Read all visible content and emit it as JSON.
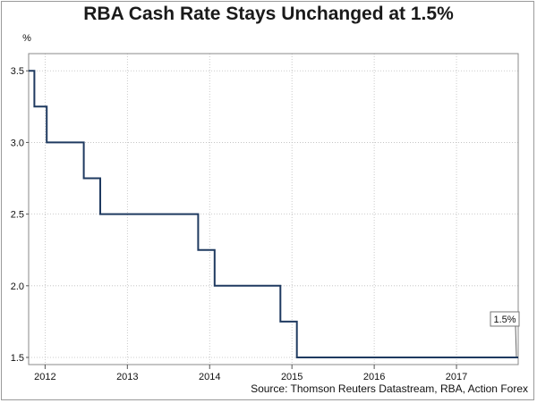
{
  "chart_data": {
    "type": "line",
    "step": true,
    "title": "RBA Cash Rate Stays Unchanged at 1.5%",
    "ylabel": "%",
    "xlabel": "",
    "source": "Source: Thomson Reuters Datastream, RBA, Action Forex",
    "ylim": [
      1.45,
      3.62
    ],
    "xlim": [
      2011.8,
      2017.75
    ],
    "yticks": [
      1.5,
      2.0,
      2.5,
      3.0,
      3.5
    ],
    "ytick_labels": [
      "1.5",
      "2.0",
      "2.5",
      "3.0",
      "3.5"
    ],
    "xtick_labels": [
      {
        "label": "2012",
        "x": 2012.0
      },
      {
        "label": "2013",
        "x": 2013.0
      },
      {
        "label": "2014",
        "x": 2014.0
      },
      {
        "label": "2015",
        "x": 2015.0
      },
      {
        "label": "2016",
        "x": 2016.0
      },
      {
        "label": "2017",
        "x": 2017.0
      }
    ],
    "grid": true,
    "series": [
      {
        "name": "RBA Cash Rate",
        "color": "#1f3a60",
        "points": [
          {
            "x": 2011.8,
            "y": 3.5
          },
          {
            "x": 2011.87,
            "y": 3.25
          },
          {
            "x": 2012.02,
            "y": 3.0
          },
          {
            "x": 2012.47,
            "y": 2.75
          },
          {
            "x": 2012.67,
            "y": 2.5
          },
          {
            "x": 2013.86,
            "y": 2.25
          },
          {
            "x": 2014.06,
            "y": 2.0
          },
          {
            "x": 2014.86,
            "y": 1.75
          },
          {
            "x": 2015.06,
            "y": 1.5
          },
          {
            "x": 2017.75,
            "y": 1.5
          }
        ]
      }
    ],
    "annotation": {
      "text": "1.5%",
      "x": 2017.75,
      "y": 1.5
    }
  }
}
